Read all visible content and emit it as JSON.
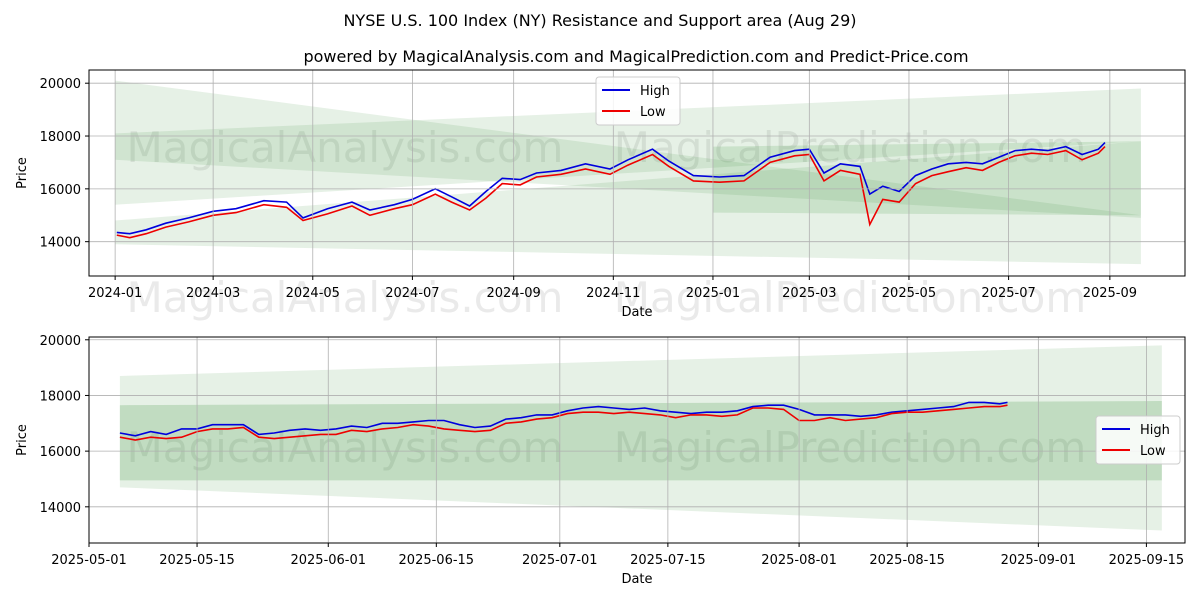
{
  "title": "NYSE U.S. 100 Index (NY) Resistance and Support area (Aug 29)",
  "subtitle": "powered by MagicalAnalysis.com and MagicalPrediction.com and Predict-Price.com",
  "watermarks": [
    "MagicalAnalysis.com",
    "MagicalPrediction.com"
  ],
  "colors": {
    "high": "#0000dd",
    "low": "#ee0000",
    "band_light": "#2e8b2e",
    "band_dark": "#2e8b2e"
  },
  "chart_data": [
    {
      "type": "line",
      "xlabel": "Date",
      "ylabel": "Price",
      "grid": true,
      "legend_position": "upper-center",
      "xlim": [
        "2023-12-16",
        "2025-10-17"
      ],
      "ylim": [
        12700,
        20500
      ],
      "x_ticks": [
        "2024-01",
        "2024-03",
        "2024-05",
        "2024-07",
        "2024-09",
        "2024-11",
        "2025-01",
        "2025-03",
        "2025-05",
        "2025-07",
        "2025-09"
      ],
      "y_ticks": [
        14000,
        16000,
        18000,
        20000
      ],
      "bands": [
        {
          "name": "resistance-light",
          "x": [
            "2024-01-01",
            "2025-09-20"
          ],
          "upper": [
            20100,
            15000
          ],
          "lower": [
            17100,
            14900
          ],
          "opacity": 0.12
        },
        {
          "name": "resistance-light-2",
          "x": [
            "2024-01-01",
            "2025-09-20"
          ],
          "upper": [
            18100,
            19800
          ],
          "lower": [
            15400,
            17800
          ],
          "opacity": 0.12
        },
        {
          "name": "support-light",
          "x": [
            "2024-01-01",
            "2025-09-20"
          ],
          "upper": [
            14800,
            17800
          ],
          "lower": [
            13900,
            13150
          ],
          "opacity": 0.12
        },
        {
          "name": "core-dark",
          "x": [
            "2025-01-01",
            "2025-09-20"
          ],
          "upper": [
            17600,
            17800
          ],
          "lower": [
            15100,
            15000
          ],
          "opacity": 0.15
        }
      ],
      "series": [
        {
          "name": "High",
          "x": [
            "2024-01-02",
            "2024-01-10",
            "2024-01-20",
            "2024-02-01",
            "2024-02-15",
            "2024-03-01",
            "2024-03-15",
            "2024-04-01",
            "2024-04-15",
            "2024-04-25",
            "2024-05-10",
            "2024-05-25",
            "2024-06-05",
            "2024-06-20",
            "2024-07-01",
            "2024-07-15",
            "2024-07-25",
            "2024-08-05",
            "2024-08-15",
            "2024-08-25",
            "2024-09-05",
            "2024-09-15",
            "2024-09-30",
            "2024-10-15",
            "2024-10-30",
            "2024-11-10",
            "2024-11-25",
            "2024-12-05",
            "2024-12-20",
            "2025-01-05",
            "2025-01-20",
            "2025-02-05",
            "2025-02-20",
            "2025-03-01",
            "2025-03-10",
            "2025-03-20",
            "2025-04-01",
            "2025-04-07",
            "2025-04-15",
            "2025-04-25",
            "2025-05-05",
            "2025-05-15",
            "2025-05-25",
            "2025-06-05",
            "2025-06-15",
            "2025-06-25",
            "2025-07-05",
            "2025-07-15",
            "2025-07-25",
            "2025-08-05",
            "2025-08-15",
            "2025-08-25",
            "2025-08-29"
          ],
          "values": [
            14350,
            14300,
            14450,
            14700,
            14900,
            15150,
            15250,
            15550,
            15500,
            14900,
            15250,
            15500,
            15200,
            15400,
            15600,
            16000,
            15700,
            15350,
            15900,
            16400,
            16350,
            16600,
            16700,
            16950,
            16750,
            17100,
            17500,
            17050,
            16500,
            16450,
            16500,
            17200,
            17450,
            17500,
            16600,
            16950,
            16850,
            15800,
            16100,
            15900,
            16500,
            16750,
            16950,
            17000,
            16950,
            17200,
            17450,
            17500,
            17450,
            17600,
            17300,
            17500,
            17750
          ],
          "color": "#0000dd"
        },
        {
          "name": "Low",
          "x": [
            "2024-01-02",
            "2024-01-10",
            "2024-01-20",
            "2024-02-01",
            "2024-02-15",
            "2024-03-01",
            "2024-03-15",
            "2024-04-01",
            "2024-04-15",
            "2024-04-25",
            "2024-05-10",
            "2024-05-25",
            "2024-06-05",
            "2024-06-20",
            "2024-07-01",
            "2024-07-15",
            "2024-07-25",
            "2024-08-05",
            "2024-08-15",
            "2024-08-25",
            "2024-09-05",
            "2024-09-15",
            "2024-09-30",
            "2024-10-15",
            "2024-10-30",
            "2024-11-10",
            "2024-11-25",
            "2024-12-05",
            "2024-12-20",
            "2025-01-05",
            "2025-01-20",
            "2025-02-05",
            "2025-02-20",
            "2025-03-01",
            "2025-03-10",
            "2025-03-20",
            "2025-04-01",
            "2025-04-07",
            "2025-04-15",
            "2025-04-25",
            "2025-05-05",
            "2025-05-15",
            "2025-05-25",
            "2025-06-05",
            "2025-06-15",
            "2025-06-25",
            "2025-07-05",
            "2025-07-15",
            "2025-07-25",
            "2025-08-05",
            "2025-08-15",
            "2025-08-25",
            "2025-08-29"
          ],
          "values": [
            14250,
            14150,
            14300,
            14550,
            14750,
            15000,
            15100,
            15400,
            15300,
            14800,
            15050,
            15350,
            15000,
            15250,
            15400,
            15800,
            15500,
            15200,
            15650,
            16200,
            16150,
            16450,
            16550,
            16750,
            16550,
            16900,
            17300,
            16850,
            16300,
            16250,
            16300,
            17000,
            17250,
            17300,
            16300,
            16700,
            16550,
            14650,
            15600,
            15500,
            16200,
            16500,
            16650,
            16800,
            16700,
            17000,
            17250,
            17350,
            17300,
            17450,
            17100,
            17350,
            17600
          ],
          "color": "#ee0000"
        }
      ],
      "legend": [
        "High",
        "Low"
      ]
    },
    {
      "type": "line",
      "xlabel": "Date",
      "ylabel": "Price",
      "grid": true,
      "legend_position": "center-right",
      "xlim": [
        "2025-05-01",
        "2025-09-20"
      ],
      "ylim": [
        12700,
        20100
      ],
      "x_ticks": [
        "2025-05-01",
        "2025-05-15",
        "2025-06-01",
        "2025-06-15",
        "2025-07-01",
        "2025-07-15",
        "2025-08-01",
        "2025-08-15",
        "2025-09-01",
        "2025-09-15"
      ],
      "y_ticks": [
        14000,
        16000,
        18000,
        20000
      ],
      "bands": [
        {
          "name": "outer-light",
          "x": [
            "2025-05-05",
            "2025-09-17"
          ],
          "upper": [
            18700,
            19800
          ],
          "lower": [
            14700,
            13150
          ],
          "opacity": 0.12
        },
        {
          "name": "inner-dark",
          "x": [
            "2025-05-05",
            "2025-09-17"
          ],
          "upper": [
            17650,
            17800
          ],
          "lower": [
            14950,
            14950
          ],
          "opacity": 0.2
        }
      ],
      "series": [
        {
          "name": "High",
          "x": [
            "2025-05-05",
            "2025-05-07",
            "2025-05-09",
            "2025-05-11",
            "2025-05-13",
            "2025-05-15",
            "2025-05-17",
            "2025-05-19",
            "2025-05-21",
            "2025-05-23",
            "2025-05-25",
            "2025-05-27",
            "2025-05-29",
            "2025-05-31",
            "2025-06-02",
            "2025-06-04",
            "2025-06-06",
            "2025-06-08",
            "2025-06-10",
            "2025-06-12",
            "2025-06-14",
            "2025-06-16",
            "2025-06-18",
            "2025-06-20",
            "2025-06-22",
            "2025-06-24",
            "2025-06-26",
            "2025-06-28",
            "2025-06-30",
            "2025-07-02",
            "2025-07-04",
            "2025-07-06",
            "2025-07-08",
            "2025-07-10",
            "2025-07-12",
            "2025-07-14",
            "2025-07-16",
            "2025-07-18",
            "2025-07-20",
            "2025-07-22",
            "2025-07-24",
            "2025-07-26",
            "2025-07-28",
            "2025-07-30",
            "2025-08-01",
            "2025-08-03",
            "2025-08-05",
            "2025-08-07",
            "2025-08-09",
            "2025-08-11",
            "2025-08-13",
            "2025-08-15",
            "2025-08-17",
            "2025-08-19",
            "2025-08-21",
            "2025-08-23",
            "2025-08-25",
            "2025-08-27",
            "2025-08-28"
          ],
          "values": [
            16650,
            16550,
            16700,
            16600,
            16800,
            16800,
            16950,
            16950,
            16950,
            16600,
            16650,
            16750,
            16800,
            16750,
            16800,
            16900,
            16850,
            17000,
            17000,
            17050,
            17100,
            17100,
            16950,
            16850,
            16900,
            17150,
            17200,
            17300,
            17300,
            17450,
            17550,
            17600,
            17550,
            17500,
            17550,
            17450,
            17400,
            17350,
            17400,
            17400,
            17450,
            17600,
            17650,
            17650,
            17500,
            17300,
            17300,
            17300,
            17250,
            17300,
            17400,
            17450,
            17500,
            17550,
            17600,
            17750,
            17750,
            17700,
            17750
          ],
          "color": "#0000dd"
        },
        {
          "name": "Low",
          "x": [
            "2025-05-05",
            "2025-05-07",
            "2025-05-09",
            "2025-05-11",
            "2025-05-13",
            "2025-05-15",
            "2025-05-17",
            "2025-05-19",
            "2025-05-21",
            "2025-05-23",
            "2025-05-25",
            "2025-05-27",
            "2025-05-29",
            "2025-05-31",
            "2025-06-02",
            "2025-06-04",
            "2025-06-06",
            "2025-06-08",
            "2025-06-10",
            "2025-06-12",
            "2025-06-14",
            "2025-06-16",
            "2025-06-18",
            "2025-06-20",
            "2025-06-22",
            "2025-06-24",
            "2025-06-26",
            "2025-06-28",
            "2025-06-30",
            "2025-07-02",
            "2025-07-04",
            "2025-07-06",
            "2025-07-08",
            "2025-07-10",
            "2025-07-12",
            "2025-07-14",
            "2025-07-16",
            "2025-07-18",
            "2025-07-20",
            "2025-07-22",
            "2025-07-24",
            "2025-07-26",
            "2025-07-28",
            "2025-07-30",
            "2025-08-01",
            "2025-08-03",
            "2025-08-05",
            "2025-08-07",
            "2025-08-09",
            "2025-08-11",
            "2025-08-13",
            "2025-08-15",
            "2025-08-17",
            "2025-08-19",
            "2025-08-21",
            "2025-08-23",
            "2025-08-25",
            "2025-08-27",
            "2025-08-28"
          ],
          "values": [
            16500,
            16400,
            16500,
            16450,
            16500,
            16700,
            16800,
            16800,
            16850,
            16500,
            16450,
            16500,
            16550,
            16600,
            16600,
            16750,
            16700,
            16800,
            16850,
            16950,
            16900,
            16800,
            16750,
            16700,
            16750,
            17000,
            17050,
            17150,
            17200,
            17350,
            17400,
            17400,
            17350,
            17400,
            17350,
            17300,
            17200,
            17300,
            17300,
            17250,
            17300,
            17550,
            17550,
            17500,
            17100,
            17100,
            17200,
            17100,
            17150,
            17200,
            17350,
            17400,
            17400,
            17450,
            17500,
            17550,
            17600,
            17600,
            17650
          ],
          "color": "#ee0000"
        }
      ],
      "legend": [
        "High",
        "Low"
      ]
    }
  ]
}
